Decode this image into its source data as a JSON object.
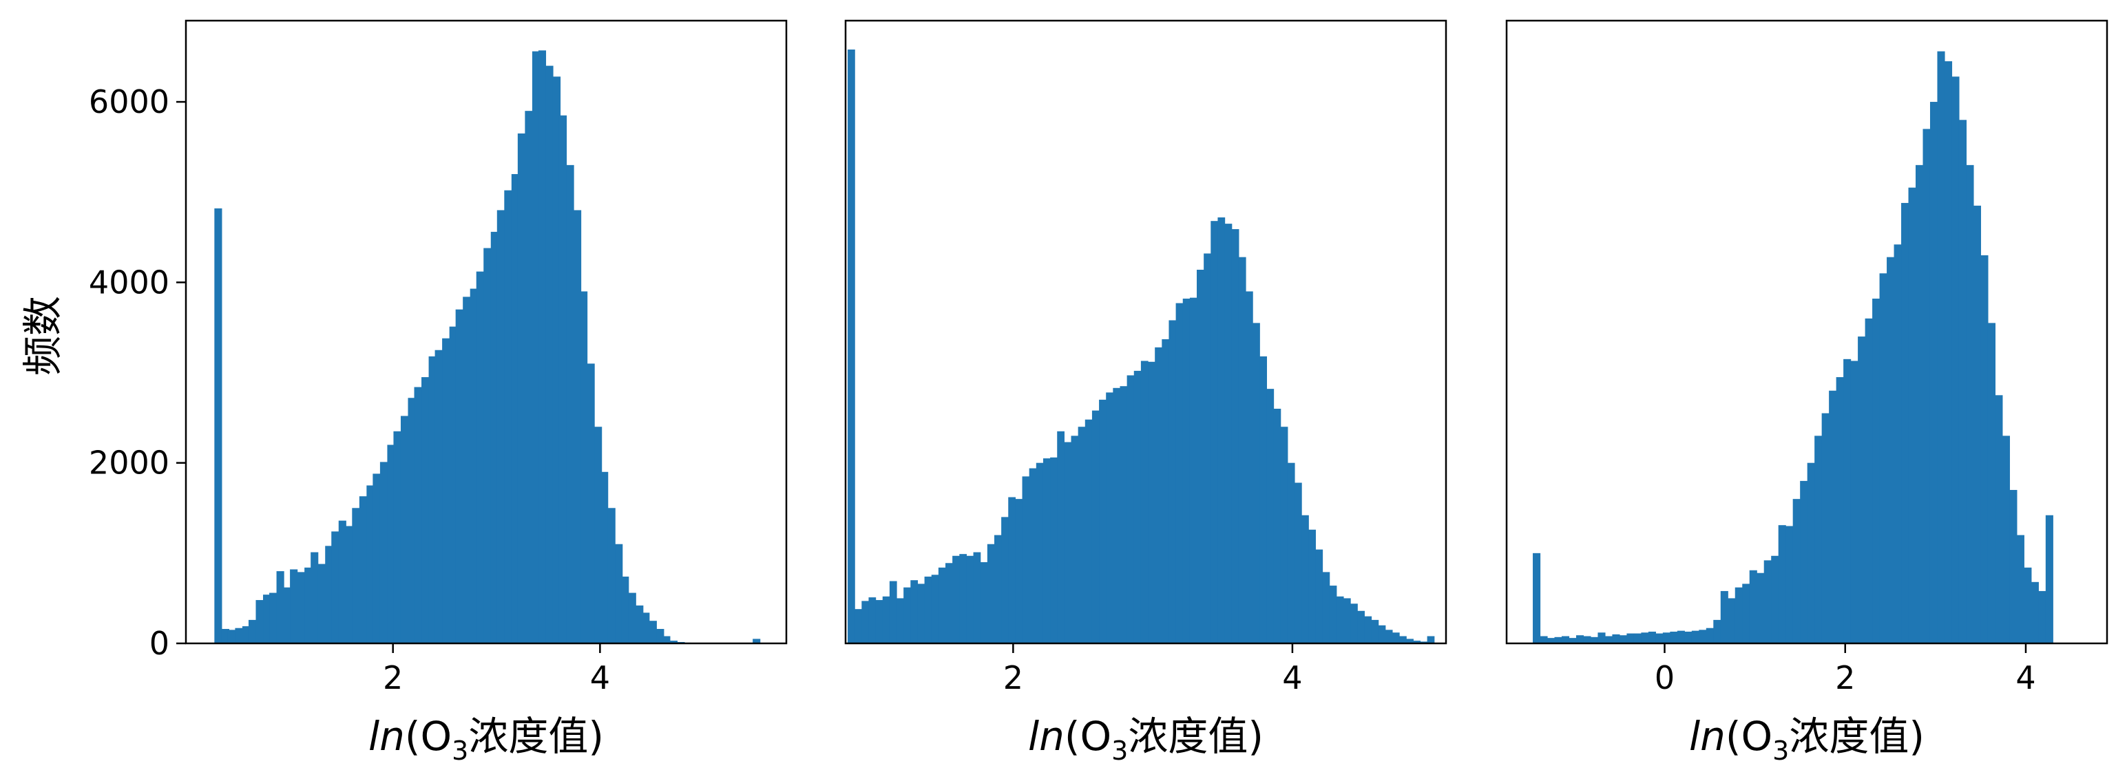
{
  "chart_data": [
    {
      "type": "bar",
      "title": "",
      "xlabel": "ln(O3浓度值)",
      "ylabel": "频数",
      "xlim": [
        0.0,
        5.8
      ],
      "ylim": [
        0,
        6900
      ],
      "xticks": [
        2,
        4
      ],
      "yticks": [
        0,
        2000,
        4000,
        6000
      ],
      "bar_color": "#1f77b4",
      "grid": false,
      "x": [
        0.31,
        0.38,
        0.44,
        0.51,
        0.58,
        0.64,
        0.71,
        0.78,
        0.84,
        0.91,
        0.98,
        1.04,
        1.11,
        1.18,
        1.24,
        1.31,
        1.38,
        1.44,
        1.51,
        1.58,
        1.64,
        1.71,
        1.78,
        1.84,
        1.91,
        1.98,
        2.04,
        2.11,
        2.18,
        2.24,
        2.31,
        2.38,
        2.44,
        2.51,
        2.58,
        2.64,
        2.71,
        2.78,
        2.84,
        2.91,
        2.98,
        3.04,
        3.11,
        3.18,
        3.24,
        3.31,
        3.38,
        3.44,
        3.51,
        3.58,
        3.64,
        3.71,
        3.78,
        3.84,
        3.91,
        3.98,
        4.04,
        4.11,
        4.18,
        4.24,
        4.31,
        4.38,
        4.44,
        4.51,
        4.58,
        4.64,
        4.71,
        4.78,
        4.84,
        4.91,
        4.98,
        5.04,
        5.11,
        5.18,
        5.24,
        5.31,
        5.38,
        5.44,
        5.51
      ],
      "values": [
        4820,
        160,
        150,
        170,
        190,
        260,
        480,
        540,
        560,
        800,
        620,
        820,
        790,
        840,
        1010,
        880,
        1080,
        1240,
        1360,
        1300,
        1500,
        1630,
        1750,
        1880,
        2010,
        2200,
        2350,
        2520,
        2720,
        2840,
        2950,
        3180,
        3250,
        3380,
        3510,
        3700,
        3840,
        3930,
        4120,
        4380,
        4560,
        4800,
        5020,
        5200,
        5650,
        5900,
        6560,
        6570,
        6400,
        6280,
        5850,
        5300,
        4800,
        3900,
        3100,
        2400,
        1900,
        1500,
        1100,
        740,
        560,
        420,
        340,
        250,
        160,
        80,
        30,
        15,
        8,
        5,
        3,
        2,
        2,
        2,
        2,
        2,
        2,
        2,
        50
      ]
    },
    {
      "type": "bar",
      "title": "",
      "xlabel": "ln(O3浓度值)",
      "ylabel": "",
      "xlim": [
        0.8,
        5.1
      ],
      "ylim": [
        0,
        6900
      ],
      "xticks": [
        2,
        4
      ],
      "yticks": [],
      "bar_color": "#1f77b4",
      "grid": false,
      "x": [
        0.84,
        0.89,
        0.94,
        0.99,
        1.04,
        1.09,
        1.14,
        1.19,
        1.24,
        1.29,
        1.34,
        1.39,
        1.44,
        1.49,
        1.54,
        1.59,
        1.64,
        1.69,
        1.74,
        1.79,
        1.84,
        1.89,
        1.94,
        1.99,
        2.04,
        2.09,
        2.14,
        2.19,
        2.24,
        2.29,
        2.34,
        2.39,
        2.44,
        2.49,
        2.54,
        2.59,
        2.64,
        2.69,
        2.74,
        2.79,
        2.84,
        2.89,
        2.94,
        2.99,
        3.04,
        3.09,
        3.14,
        3.19,
        3.24,
        3.29,
        3.34,
        3.39,
        3.44,
        3.49,
        3.54,
        3.59,
        3.64,
        3.69,
        3.74,
        3.79,
        3.84,
        3.89,
        3.94,
        3.99,
        4.04,
        4.09,
        4.14,
        4.19,
        4.24,
        4.29,
        4.34,
        4.39,
        4.44,
        4.49,
        4.54,
        4.59,
        4.64,
        4.69,
        4.74,
        4.79,
        4.84,
        4.89,
        4.94,
        4.99
      ],
      "values": [
        6580,
        380,
        470,
        510,
        480,
        520,
        690,
        500,
        620,
        700,
        660,
        740,
        760,
        840,
        890,
        970,
        990,
        970,
        1010,
        900,
        1100,
        1200,
        1400,
        1620,
        1600,
        1850,
        1940,
        2000,
        2050,
        2060,
        2350,
        2230,
        2300,
        2400,
        2480,
        2580,
        2700,
        2780,
        2830,
        2850,
        2970,
        3020,
        3130,
        3120,
        3280,
        3370,
        3580,
        3770,
        3820,
        3830,
        4140,
        4320,
        4680,
        4720,
        4650,
        4590,
        4280,
        3900,
        3550,
        3180,
        2820,
        2600,
        2400,
        2000,
        1780,
        1420,
        1260,
        1040,
        790,
        640,
        520,
        500,
        440,
        360,
        300,
        260,
        200,
        150,
        120,
        80,
        50,
        30,
        20,
        80
      ]
    },
    {
      "type": "bar",
      "title": "",
      "xlabel": "ln(O3浓度值)",
      "ylabel": "",
      "xlim": [
        -1.75,
        4.9
      ],
      "ylim": [
        0,
        6900
      ],
      "xticks": [
        0,
        2,
        4
      ],
      "yticks": [],
      "bar_color": "#1f77b4",
      "grid": false,
      "x": [
        -1.42,
        -1.34,
        -1.26,
        -1.18,
        -1.1,
        -1.02,
        -0.94,
        -0.86,
        -0.78,
        -0.7,
        -0.62,
        -0.54,
        -0.46,
        -0.38,
        -0.3,
        -0.22,
        -0.14,
        -0.06,
        0.02,
        0.1,
        0.18,
        0.26,
        0.34,
        0.42,
        0.5,
        0.58,
        0.66,
        0.74,
        0.82,
        0.9,
        0.98,
        1.06,
        1.14,
        1.22,
        1.3,
        1.38,
        1.46,
        1.54,
        1.62,
        1.7,
        1.78,
        1.86,
        1.94,
        2.02,
        2.1,
        2.18,
        2.26,
        2.34,
        2.42,
        2.5,
        2.58,
        2.66,
        2.74,
        2.82,
        2.9,
        2.98,
        3.06,
        3.14,
        3.22,
        3.3,
        3.38,
        3.46,
        3.54,
        3.62,
        3.7,
        3.78,
        3.86,
        3.94,
        4.02,
        4.1,
        4.18,
        4.26,
        4.34,
        4.42,
        4.5,
        4.58
      ],
      "values": [
        1000,
        80,
        60,
        70,
        80,
        60,
        90,
        80,
        70,
        120,
        80,
        100,
        90,
        110,
        110,
        120,
        130,
        110,
        120,
        130,
        140,
        130,
        140,
        150,
        170,
        260,
        580,
        500,
        620,
        660,
        810,
        780,
        920,
        970,
        1310,
        1300,
        1600,
        1800,
        2000,
        2300,
        2550,
        2800,
        2950,
        3150,
        3130,
        3400,
        3600,
        3820,
        4100,
        4280,
        4420,
        4880,
        5050,
        5300,
        5700,
        6000,
        6560,
        6450,
        6280,
        5800,
        5300,
        4850,
        4300,
        3550,
        2750,
        2300,
        1700,
        1200,
        840,
        680,
        580,
        1420,
        0,
        0,
        0,
        0
      ]
    }
  ]
}
